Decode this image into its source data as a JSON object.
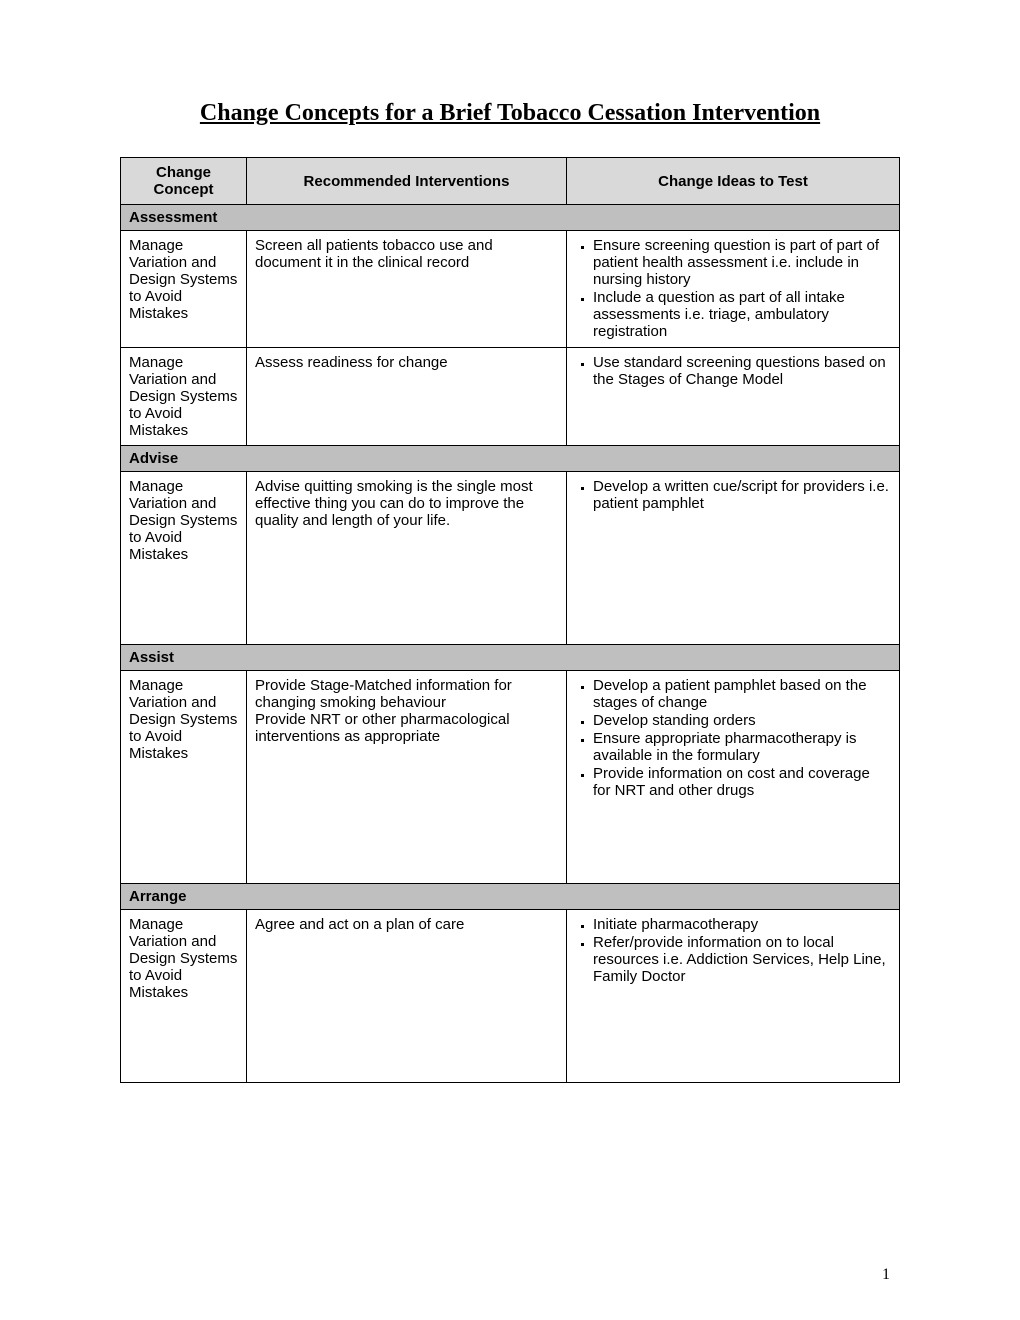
{
  "title": "Change Concepts for a Brief Tobacco Cessation Intervention",
  "headers": {
    "col1": "Change Concept",
    "col2": "Recommended Interventions",
    "col3": "Change Ideas to Test"
  },
  "sections": [
    {
      "label": "Assessment",
      "rows": [
        {
          "concept": "Manage Variation and Design Systems to Avoid Mistakes",
          "intervention": "Screen all patients tobacco use and document it in the clinical record",
          "ideas": [
            "Ensure screening question is part of part of patient health assessment i.e. include in nursing history",
            "Include a question as part of all intake assessments i.e. triage, ambulatory registration"
          ]
        },
        {
          "concept": "Manage Variation and Design Systems to Avoid Mistakes",
          "intervention": "Assess readiness for change",
          "ideas": [
            "Use standard screening questions based on the Stages of Change Model"
          ]
        }
      ]
    },
    {
      "label": "Advise",
      "rows": [
        {
          "concept": "Manage Variation and Design Systems to Avoid Mistakes",
          "intervention": "Advise quitting smoking is the single most effective thing you can do to improve the quality and length of your life.",
          "ideas": [
            "Develop  a written cue/script for providers i.e. patient pamphlet"
          ],
          "tall": true
        }
      ]
    },
    {
      "label": "Assist",
      "rows": [
        {
          "concept": "Manage Variation and Design Systems to Avoid Mistakes",
          "intervention": "Provide Stage-Matched information for changing smoking behaviour\nProvide NRT or other pharmacological interventions as appropriate",
          "ideas": [
            "Develop a patient pamphlet based on the stages of change",
            "Develop standing orders",
            "Ensure appropriate pharmacotherapy is available in the formulary",
            "Provide information on cost and coverage for NRT and other drugs"
          ],
          "taller": true
        }
      ]
    },
    {
      "label": "Arrange",
      "rows": [
        {
          "concept": "Manage Variation and Design Systems to Avoid Mistakes",
          "intervention": "Agree and act on a plan of care",
          "ideas": [
            "Initiate pharmacotherapy",
            "Refer/provide information on to local resources i.e. Addiction Services, Help Line, Family Doctor"
          ],
          "tall": true
        }
      ]
    }
  ],
  "page_number": "1",
  "colors": {
    "header_bg": "#d9d9d9",
    "section_bg": "#bfbfbf",
    "border": "#000000",
    "background": "#ffffff"
  }
}
